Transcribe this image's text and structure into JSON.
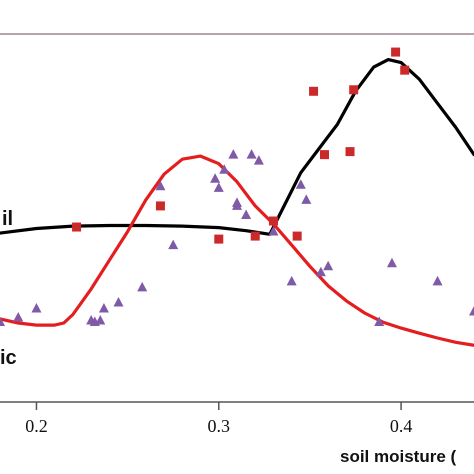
{
  "chart_data": {
    "type": "scatter",
    "xlabel": "soil moisture (",
    "xlim": [
      0.18,
      0.44
    ],
    "ylim": [
      0,
      1.2
    ],
    "grid": false,
    "x_ticks": [
      {
        "value": 0.2,
        "label": "0.2"
      },
      {
        "value": 0.3,
        "label": "0.3"
      },
      {
        "value": 0.4,
        "label": "0.4"
      }
    ],
    "series": [
      {
        "name": "il",
        "kind": "line",
        "color": "#000000",
        "points": [
          [
            0.18,
            0.56
          ],
          [
            0.2,
            0.575
          ],
          [
            0.22,
            0.583
          ],
          [
            0.24,
            0.585
          ],
          [
            0.26,
            0.585
          ],
          [
            0.28,
            0.583
          ],
          [
            0.3,
            0.578
          ],
          [
            0.315,
            0.568
          ],
          [
            0.328,
            0.556
          ],
          [
            0.335,
            0.64
          ],
          [
            0.345,
            0.76
          ],
          [
            0.355,
            0.84
          ],
          [
            0.365,
            0.92
          ],
          [
            0.375,
            1.03
          ],
          [
            0.385,
            1.11
          ],
          [
            0.393,
            1.135
          ],
          [
            0.4,
            1.125
          ],
          [
            0.41,
            1.07
          ],
          [
            0.42,
            0.99
          ],
          [
            0.43,
            0.91
          ],
          [
            0.44,
            0.82
          ]
        ]
      },
      {
        "name": "ic",
        "kind": "line",
        "color": "#e41e1e",
        "points": [
          [
            0.18,
            0.275
          ],
          [
            0.19,
            0.262
          ],
          [
            0.2,
            0.255
          ],
          [
            0.21,
            0.255
          ],
          [
            0.215,
            0.262
          ],
          [
            0.22,
            0.29
          ],
          [
            0.23,
            0.375
          ],
          [
            0.24,
            0.47
          ],
          [
            0.25,
            0.565
          ],
          [
            0.26,
            0.67
          ],
          [
            0.27,
            0.755
          ],
          [
            0.28,
            0.805
          ],
          [
            0.29,
            0.815
          ],
          [
            0.3,
            0.79
          ],
          [
            0.31,
            0.73
          ],
          [
            0.32,
            0.65
          ],
          [
            0.33,
            0.59
          ],
          [
            0.34,
            0.52
          ],
          [
            0.35,
            0.45
          ],
          [
            0.36,
            0.385
          ],
          [
            0.37,
            0.335
          ],
          [
            0.38,
            0.295
          ],
          [
            0.39,
            0.265
          ],
          [
            0.4,
            0.245
          ],
          [
            0.41,
            0.228
          ],
          [
            0.42,
            0.212
          ],
          [
            0.43,
            0.198
          ],
          [
            0.44,
            0.188
          ]
        ]
      },
      {
        "name": "",
        "kind": "markers",
        "marker": "square",
        "color": "#cc2a2a",
        "points": [
          [
            0.222,
            0.58
          ],
          [
            0.268,
            0.65
          ],
          [
            0.3,
            0.54
          ],
          [
            0.32,
            0.55
          ],
          [
            0.33,
            0.6
          ],
          [
            0.343,
            0.55
          ],
          [
            0.352,
            1.03
          ],
          [
            0.358,
            0.82
          ],
          [
            0.372,
            0.83
          ],
          [
            0.374,
            1.035
          ],
          [
            0.397,
            1.16
          ],
          [
            0.402,
            1.1
          ]
        ]
      },
      {
        "name": "",
        "kind": "markers",
        "marker": "triangle",
        "color": "#7f5aa7",
        "points": [
          [
            0.18,
            0.265
          ],
          [
            0.19,
            0.28
          ],
          [
            0.2,
            0.31
          ],
          [
            0.23,
            0.27
          ],
          [
            0.232,
            0.265
          ],
          [
            0.235,
            0.27
          ],
          [
            0.237,
            0.31
          ],
          [
            0.245,
            0.33
          ],
          [
            0.258,
            0.38
          ],
          [
            0.268,
            0.715
          ],
          [
            0.275,
            0.52
          ],
          [
            0.298,
            0.74
          ],
          [
            0.3,
            0.71
          ],
          [
            0.303,
            0.77
          ],
          [
            0.308,
            0.82
          ],
          [
            0.31,
            0.65
          ],
          [
            0.31,
            0.66
          ],
          [
            0.315,
            0.62
          ],
          [
            0.318,
            0.82
          ],
          [
            0.322,
            0.8
          ],
          [
            0.33,
            0.565
          ],
          [
            0.34,
            0.4
          ],
          [
            0.345,
            0.72
          ],
          [
            0.348,
            0.67
          ],
          [
            0.356,
            0.43
          ],
          [
            0.36,
            0.45
          ],
          [
            0.388,
            0.265
          ],
          [
            0.395,
            0.46
          ],
          [
            0.42,
            0.4
          ],
          [
            0.44,
            0.3
          ]
        ]
      }
    ]
  },
  "colors": {
    "top_border": "#b7a3b0",
    "axis": "#555555"
  }
}
